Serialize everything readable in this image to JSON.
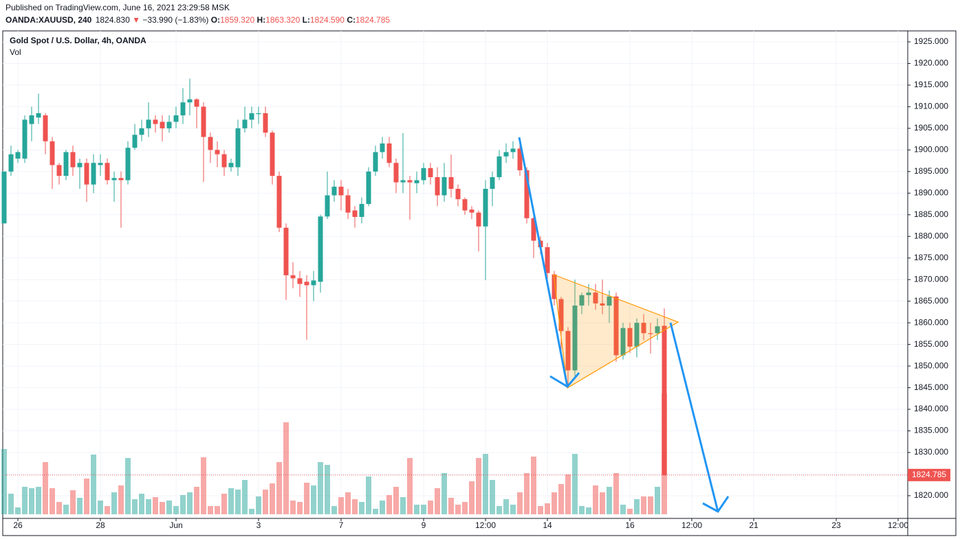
{
  "header": {
    "published": "Published on TradingView.com, June 16, 2021 23:29:58 MSK",
    "symbol": "OANDA:XAUUSD, 240",
    "last": "1824.830",
    "arrow": "▼",
    "change": "−33.990 (−1.83%)",
    "ohlc": [
      {
        "label": "O:",
        "value": "1859.320"
      },
      {
        "label": "H:",
        "value": "1863.320"
      },
      {
        "label": "L:",
        "value": "1824.590"
      },
      {
        "label": "C:",
        "value": "1824.785"
      }
    ]
  },
  "chart_data": {
    "type": "candlestick",
    "title": "Gold Spot / U.S. Dollar, 4h, OANDA",
    "volume_label": "Vol",
    "up_color": "#26a69a",
    "down_color": "#ef5350",
    "grid": true,
    "categories": [
      null,
      null,
      "26",
      null,
      null,
      null,
      null,
      null,
      null,
      null,
      null,
      null,
      null,
      null,
      "28",
      null,
      null,
      null,
      null,
      null,
      null,
      null,
      null,
      null,
      null,
      "Jun",
      null,
      null,
      null,
      null,
      null,
      null,
      null,
      null,
      null,
      null,
      null,
      "3",
      null,
      null,
      null,
      null,
      null,
      null,
      null,
      null,
      null,
      null,
      null,
      "7",
      null,
      null,
      null,
      null,
      null,
      null,
      null,
      null,
      null,
      null,
      null,
      "9",
      null,
      null,
      null,
      null,
      null,
      null,
      null,
      null,
      "12:00",
      null,
      null,
      null,
      null,
      null,
      null,
      null,
      null,
      "14",
      null,
      null,
      null,
      null,
      null,
      null,
      null,
      null,
      null,
      null,
      null,
      "16",
      null,
      null,
      null,
      null,
      null,
      null,
      null,
      null,
      "12:00",
      null,
      null,
      null,
      null,
      null,
      null,
      null,
      null,
      "21",
      null,
      null,
      null,
      null,
      null,
      null,
      null,
      null,
      null,
      null,
      null,
      "23",
      null,
      null,
      null,
      null,
      null,
      null,
      null,
      null,
      "12:00"
    ],
    "open": [
      1883,
      1895,
      1898,
      1898,
      1906,
      1907.5,
      1908,
      1902,
      1896.5,
      1894,
      1899.5,
      1896,
      1897,
      1892,
      1896.5,
      1897,
      1893,
      1893.5,
      1893,
      1900.5,
      1903.5,
      1905,
      1907,
      1906.5,
      1905,
      1906.5,
      1908,
      1911,
      1911.7,
      1910,
      1903,
      1900,
      1899,
      1896,
      1896,
      1905,
      1907,
      1908.3,
      1908.5,
      1904,
      1894,
      1882,
      1871,
      1870.3,
      1869.5,
      1868.7,
      1869.5,
      1884.6,
      1889.5,
      1891.5,
      1889.5,
      1886,
      1884.5,
      1887.5,
      1895,
      1899.5,
      1901.5,
      1897,
      1892.5,
      1893,
      1892.3,
      1893,
      1895.8,
      1893.7,
      1889.5,
      1893.7,
      1891,
      1888.6,
      1886.2,
      1885.5,
      1882.3,
      1891,
      1893.7,
      1898.5,
      1899.5,
      1900.3,
      1895.3,
      1884.2,
      1879,
      1877.5,
      1871.2,
      1865.5,
      1858.1,
      1849,
      1864,
      1866.4,
      1867,
      1864.5,
      1864,
      1866.1,
      1852.5,
      1858.8,
      1854.5,
      1860,
      1857.6,
      1857.6,
      1859.32,
      null,
      null,
      null,
      null,
      null,
      null,
      null,
      null,
      null,
      null,
      null,
      null,
      null,
      null,
      null,
      null,
      null,
      null,
      null,
      null,
      null,
      null,
      null,
      null,
      null,
      null,
      null,
      null,
      null,
      null,
      null,
      null,
      null,
      null
    ],
    "high": [
      1895,
      1901,
      1900,
      1908,
      1910,
      1913,
      1908.5,
      1903,
      1897,
      1900,
      1901,
      1898,
      1898,
      1899,
      1899,
      1898,
      1895,
      1895,
      1902,
      1906,
      1907,
      1911,
      1908,
      1908,
      1908,
      1910,
      1914.3,
      1916.5,
      1912,
      1911,
      1904,
      1902,
      1900,
      1898,
      1907,
      1910,
      1910,
      1910,
      1910,
      1904.5,
      1895,
      1883,
      1874,
      1872,
      1871,
      1872,
      1885,
      1895,
      1893,
      1893,
      1891,
      1887,
      1889,
      1896,
      1901,
      1903,
      1903,
      1898,
      1903.9,
      1894,
      1895,
      1897,
      1897,
      1896,
      1897,
      1898.9,
      1892,
      1889,
      1887,
      1886,
      1893,
      1895,
      1900,
      1901.5,
      1902,
      1902,
      1896,
      1885,
      1880,
      1878.5,
      1872,
      1866,
      1859,
      1870,
      1867,
      1869,
      1869,
      1870,
      1867.5,
      1867,
      1860,
      1860,
      1861,
      1862,
      1860,
      1861,
      1863.32,
      null,
      null,
      null,
      null,
      null,
      null,
      null,
      null,
      null,
      null,
      null,
      null,
      null,
      null,
      null,
      null,
      null,
      null,
      null,
      null,
      null,
      null,
      null,
      null,
      null,
      null,
      null,
      null,
      null,
      null,
      null,
      null,
      null,
      null
    ],
    "low": [
      1883,
      1894,
      1897,
      1897,
      1902,
      1906,
      1899,
      1891,
      1892,
      1893,
      1894,
      1891,
      1888,
      1890,
      1894,
      1892,
      1888,
      1882,
      1892,
      1900,
      1902,
      1903,
      1904,
      1902,
      1904,
      1905,
      1906,
      1908,
      1905,
      1892.6,
      1897,
      1896,
      1894,
      1895,
      1894,
      1904,
      1905,
      1906,
      1903,
      1892,
      1881,
      1865.3,
      1868,
      1866,
      1856.1,
      1865,
      1867,
      1884,
      1888,
      1886,
      1884,
      1882,
      1883,
      1887,
      1894,
      1898,
      1896,
      1890,
      1890,
      1883.9,
      1890,
      1892,
      1892,
      1887,
      1888,
      1889,
      1887,
      1885,
      1884,
      1876.5,
      1869.9,
      1887,
      1893,
      1897,
      1898,
      1894,
      1883,
      1875,
      1876,
      1870,
      1864,
      1852,
      1844.9,
      1847,
      1862,
      1864,
      1863,
      1862,
      1860,
      1851,
      1851.5,
      1853,
      1852,
      1856,
      1852.9,
      1856,
      1824.59,
      null,
      null,
      null,
      null,
      null,
      null,
      null,
      null,
      null,
      null,
      null,
      null,
      null,
      null,
      null,
      null,
      null,
      null,
      null,
      null,
      null,
      null,
      null,
      null,
      null,
      null,
      null,
      null,
      null,
      null,
      null,
      null,
      null,
      null
    ],
    "close": [
      1895,
      1899,
      1899.5,
      1907,
      1908,
      1908.5,
      1902,
      1896.5,
      1894,
      1899.5,
      1896,
      1897,
      1892,
      1897,
      1897,
      1893,
      1893.5,
      1893,
      1900.5,
      1903.5,
      1905,
      1907,
      1906,
      1905,
      1906.5,
      1908,
      1911,
      1911.7,
      1910,
      1903,
      1900,
      1899,
      1896,
      1897,
      1905,
      1907,
      1908.5,
      1908.5,
      1904,
      1894,
      1882,
      1871,
      1870.3,
      1869,
      1868.7,
      1869.8,
      1884.6,
      1889.5,
      1891.5,
      1889.5,
      1885.5,
      1884.5,
      1887.5,
      1895,
      1899.5,
      1901.5,
      1897,
      1892.5,
      1893,
      1892.5,
      1893,
      1895.8,
      1893.7,
      1889.5,
      1893.7,
      1891,
      1888.6,
      1886,
      1885.5,
      1882.3,
      1891,
      1893.7,
      1898.5,
      1899.5,
      1900.3,
      1895.3,
      1884.2,
      1879,
      1877.5,
      1871.5,
      1865.5,
      1858.1,
      1849,
      1864,
      1866.4,
      1867,
      1864.5,
      1864,
      1866.1,
      1852.5,
      1858.8,
      1854.5,
      1860,
      1857.6,
      1857.4,
      1859.2,
      1824.785,
      null,
      null,
      null,
      null,
      null,
      null,
      null,
      null,
      null,
      null,
      null,
      null,
      null,
      null,
      null,
      null,
      null,
      null,
      null,
      null,
      null,
      null,
      null,
      null,
      null,
      null,
      null,
      null,
      null,
      null,
      null,
      null,
      null,
      null
    ],
    "volume": [
      95,
      30,
      10,
      40,
      38,
      40,
      76,
      38,
      18,
      14,
      35,
      24,
      52,
      87,
      20,
      12,
      32,
      42,
      82,
      22,
      30,
      22,
      25,
      18,
      20,
      12,
      28,
      32,
      40,
      83,
      12,
      12,
      30,
      38,
      36,
      50,
      8,
      26,
      36,
      45,
      76,
      134,
      20,
      18,
      46,
      42,
      76,
      72,
      12,
      25,
      32,
      22,
      18,
      55,
      8,
      20,
      28,
      40,
      25,
      82,
      14,
      14,
      20,
      38,
      60,
      24,
      14,
      18,
      48,
      82,
      88,
      50,
      12,
      22,
      14,
      32,
      60,
      84,
      12,
      16,
      32,
      44,
      58,
      88,
      12,
      10,
      42,
      32,
      40,
      60,
      14,
      8,
      22,
      26,
      26,
      40,
      176,
      null,
      null,
      null,
      null,
      null,
      null,
      null,
      null,
      null,
      null,
      null,
      null,
      null,
      null,
      null,
      null,
      null,
      null,
      null,
      null,
      null,
      null,
      null,
      null,
      null,
      null,
      null,
      null,
      null,
      null,
      null,
      null,
      null,
      null
    ],
    "last_price": {
      "value": 1824.785,
      "label": "1824.785"
    },
    "ylim": [
      1814.75,
      1927.54
    ],
    "yticks": [
      {
        "value": 1820,
        "label": "1820.000"
      },
      {
        "value": 1825,
        "label": "1825.000"
      },
      {
        "value": 1830,
        "label": "1830.000"
      },
      {
        "value": 1835,
        "label": "1835.000"
      },
      {
        "value": 1840,
        "label": "1840.000"
      },
      {
        "value": 1845,
        "label": "1845.000"
      },
      {
        "value": 1850,
        "label": "1850.000"
      },
      {
        "value": 1855,
        "label": "1855.000"
      },
      {
        "value": 1860,
        "label": "1860.000"
      },
      {
        "value": 1865,
        "label": "1865.000"
      },
      {
        "value": 1870,
        "label": "1870.000"
      },
      {
        "value": 1875,
        "label": "1875.000"
      },
      {
        "value": 1880,
        "label": "1880.000"
      },
      {
        "value": 1885,
        "label": "1885.000"
      },
      {
        "value": 1890,
        "label": "1890.000"
      },
      {
        "value": 1895,
        "label": "1895.000"
      },
      {
        "value": 1900,
        "label": "1900.000"
      },
      {
        "value": 1905,
        "label": "1905.000"
      },
      {
        "value": 1910,
        "label": "1910.000"
      },
      {
        "value": 1915,
        "label": "1915.000"
      },
      {
        "value": 1920,
        "label": "1920.000"
      },
      {
        "value": 1925,
        "label": "1925.000"
      }
    ]
  }
}
